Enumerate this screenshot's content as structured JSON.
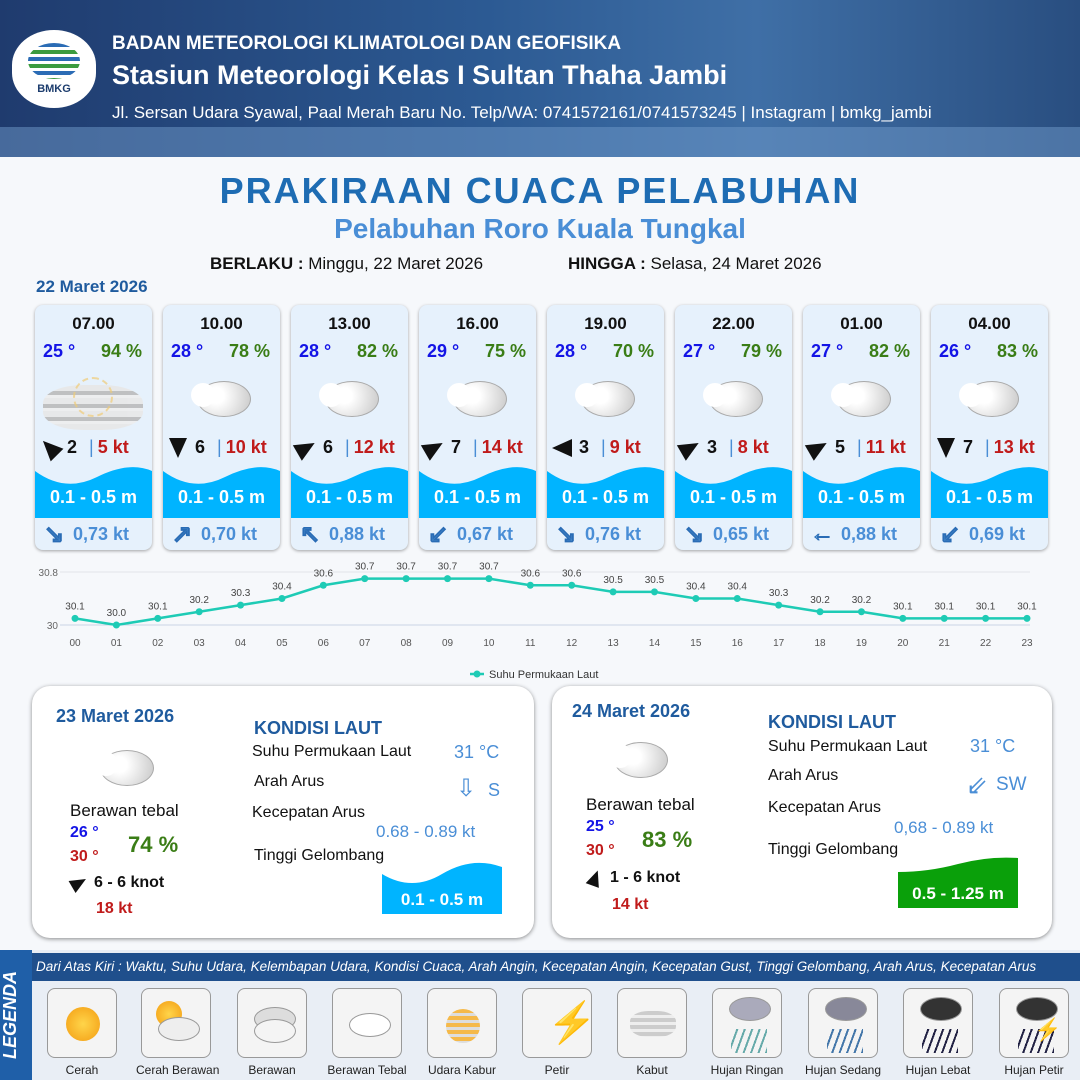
{
  "header": {
    "org": "BADAN METEOROLOGI KLIMATOLOGI DAN GEOFISIKA",
    "station": "Stasiun Meteorologi Kelas I Sultan Thaha Jambi",
    "address": "Jl. Sersan Udara Syawal, Paal Merah Baru No. Telp/WA: 0741572161/0741573245 | Instagram | bmkg_jambi",
    "logo_text": "BMKG"
  },
  "title": "PRAKIRAAN CUACA PELABUHAN",
  "subtitle": "Pelabuhan Roro Kuala Tungkal",
  "validity": {
    "from_label": "BERLAKU :",
    "from": "Minggu, 22 Maret 2026",
    "to_label": "HINGGA :",
    "to": "Selasa, 24 Maret 2026"
  },
  "day1": {
    "date": "22 Maret 2026",
    "cards": [
      {
        "time": "07.00",
        "temp": "25 °",
        "hum": "94 %",
        "weather": "kabut",
        "wind_dir_deg": 315,
        "wind": "2",
        "gust": "5 kt",
        "wave": "0.1 - 0.5 m",
        "current_dir": "↘",
        "current": "0,73 kt"
      },
      {
        "time": "10.00",
        "temp": "28 °",
        "hum": "78 %",
        "weather": "berawan-tebal",
        "wind_dir_deg": 180,
        "wind": "6",
        "gust": "10 kt",
        "wave": "0.1 - 0.5 m",
        "current_dir": "↗",
        "current": "0,70 kt"
      },
      {
        "time": "13.00",
        "temp": "28 °",
        "hum": "82 %",
        "weather": "berawan-tebal",
        "wind_dir_deg": 60,
        "wind": "6",
        "gust": "12 kt",
        "wave": "0.1 - 0.5 m",
        "current_dir": "↖",
        "current": "0,88 kt"
      },
      {
        "time": "16.00",
        "temp": "29 °",
        "hum": "75 %",
        "weather": "berawan-tebal",
        "wind_dir_deg": 60,
        "wind": "7",
        "gust": "14 kt",
        "wave": "0.1 - 0.5 m",
        "current_dir": "↙",
        "current": "0,67 kt"
      },
      {
        "time": "19.00",
        "temp": "28 °",
        "hum": "70 %",
        "weather": "berawan-tebal",
        "wind_dir_deg": 270,
        "wind": "3",
        "gust": "9 kt",
        "wave": "0.1 - 0.5 m",
        "current_dir": "↘",
        "current": "0,76 kt"
      },
      {
        "time": "22.00",
        "temp": "27 °",
        "hum": "79 %",
        "weather": "berawan-tebal",
        "wind_dir_deg": 60,
        "wind": "3",
        "gust": "8 kt",
        "wave": "0.1 - 0.5 m",
        "current_dir": "↘",
        "current": "0,65 kt"
      },
      {
        "time": "01.00",
        "temp": "27 °",
        "hum": "82 %",
        "weather": "berawan-tebal",
        "wind_dir_deg": 60,
        "wind": "5",
        "gust": "11 kt",
        "wave": "0.1 - 0.5 m",
        "current_dir": "←",
        "current": "0,88 kt"
      },
      {
        "time": "04.00",
        "temp": "26 °",
        "hum": "83 %",
        "weather": "berawan-tebal",
        "wind_dir_deg": 180,
        "wind": "7",
        "gust": "13 kt",
        "wave": "0.1 - 0.5 m",
        "current_dir": "↙",
        "current": "0,69 kt"
      }
    ]
  },
  "chart_data": {
    "type": "line",
    "x": [
      "00",
      "01",
      "02",
      "03",
      "04",
      "05",
      "06",
      "07",
      "08",
      "09",
      "10",
      "11",
      "12",
      "13",
      "14",
      "15",
      "16",
      "17",
      "18",
      "19",
      "20",
      "21",
      "22",
      "23"
    ],
    "series": [
      {
        "name": "Suhu Permukaan Laut",
        "values": [
          30.1,
          30.0,
          30.1,
          30.2,
          30.3,
          30.4,
          30.6,
          30.7,
          30.7,
          30.7,
          30.7,
          30.6,
          30.6,
          30.5,
          30.5,
          30.4,
          30.4,
          30.3,
          30.2,
          30.2,
          30.1,
          30.1,
          30.1,
          30.1
        ],
        "color": "#1ecbb5"
      }
    ],
    "y_ticks": [
      "30",
      "30.8"
    ],
    "ylim": [
      30,
      30.8
    ],
    "legend": "bottom-center",
    "grid": true
  },
  "day2": {
    "date": "23 Maret 2026",
    "weather": "Berawan tebal",
    "tmin": "26 °",
    "tmax": "30 °",
    "hum": "74 %",
    "wind": "6  - 6 knot",
    "gust": "18 kt",
    "sea": {
      "title": "KONDISI LAUT",
      "sst_label": "Suhu Permukaan Laut",
      "sst": "31 °C",
      "dir_label": "Arah Arus",
      "dir": "S",
      "dir_icon": "⇩",
      "speed_label": "Kecepatan Arus",
      "speed": "0.68  - 0.89 kt",
      "wave_label": "Tinggi Gelombang",
      "wave": "0.1 - 0.5 m",
      "wave_color": "#00b4ff"
    }
  },
  "day3": {
    "date": "24 Maret 2026",
    "weather": "Berawan tebal",
    "tmin": "25 °",
    "tmax": "30 °",
    "hum": "83 %",
    "wind": "1  - 6 knot",
    "gust": "14 kt",
    "sea": {
      "title": "KONDISI LAUT",
      "sst_label": "Suhu Permukaan Laut",
      "sst": "31 °C",
      "dir_label": "Arah Arus",
      "dir": "SW",
      "dir_icon": "⇙",
      "speed_label": "Kecepatan Arus",
      "speed": "0,68  - 0.89 kt",
      "wave_label": "Tinggi Gelombang",
      "wave": "0.5 - 1.25 m",
      "wave_color": "#0aa00a"
    }
  },
  "legend": {
    "title": "LEGENDA",
    "description": "Dari Atas Kiri : Waktu, Suhu Udara, Kelembapan Udara, Kondisi Cuaca, Arah Angin, Kecepatan Angin, Kecepatan Gust, Tinggi Gelombang, Arah Arus, Kecepatan Arus",
    "items": [
      "Cerah",
      "Cerah Berawan",
      "Berawan",
      "Berawan Tebal",
      "Udara Kabur",
      "Petir",
      "Kabut",
      "Hujan Ringan",
      "Hujan Sedang",
      "Hujan Lebat",
      "Hujan Petir"
    ]
  }
}
